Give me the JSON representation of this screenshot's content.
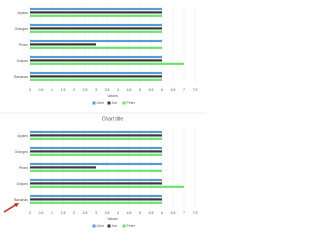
{
  "chart_data": [
    {
      "type": "barh",
      "categories": [
        "Apples",
        "Oranges",
        "Pears",
        "Grapes",
        "Bananas"
      ],
      "series": [
        {
          "name": "John",
          "color": "#5b9bd5",
          "values": [
            6,
            6,
            6,
            6,
            6
          ]
        },
        {
          "name": "Joe",
          "color": "#3a3a3a",
          "values": [
            6,
            6,
            3,
            6,
            6
          ]
        },
        {
          "name": "Peter",
          "color": "#6ee06e",
          "values": [
            6,
            6,
            6,
            7,
            6
          ]
        }
      ],
      "x_label": "Values",
      "xlim": [
        0,
        7.5
      ],
      "xticks": [
        0,
        0.5,
        1,
        1.5,
        2,
        2.5,
        3,
        3.5,
        4,
        4.5,
        5,
        5.5,
        6,
        6.5,
        7,
        7.5
      ],
      "grid": true
    },
    {
      "type": "barh",
      "title": "Chart title",
      "categories": [
        "Apples",
        "Oranges",
        "Pears",
        "Grapes",
        "Bananas"
      ],
      "series": [
        {
          "name": "John",
          "color": "#5b9bd5",
          "values": [
            6,
            6,
            6,
            6,
            6
          ]
        },
        {
          "name": "Joe",
          "color": "#3a3a3a",
          "values": [
            6,
            6,
            3,
            6,
            6
          ]
        },
        {
          "name": "Peter",
          "color": "#6ee06e",
          "values": [
            6,
            6,
            6,
            7,
            6
          ]
        }
      ],
      "x_label": "Values",
      "xlim": [
        0,
        7.5
      ],
      "xticks": [
        0,
        0.5,
        1,
        1.5,
        2,
        2.5,
        3,
        3.5,
        4,
        4.5,
        5,
        5.5,
        6,
        6.5,
        7,
        7.5
      ],
      "grid": true
    }
  ]
}
